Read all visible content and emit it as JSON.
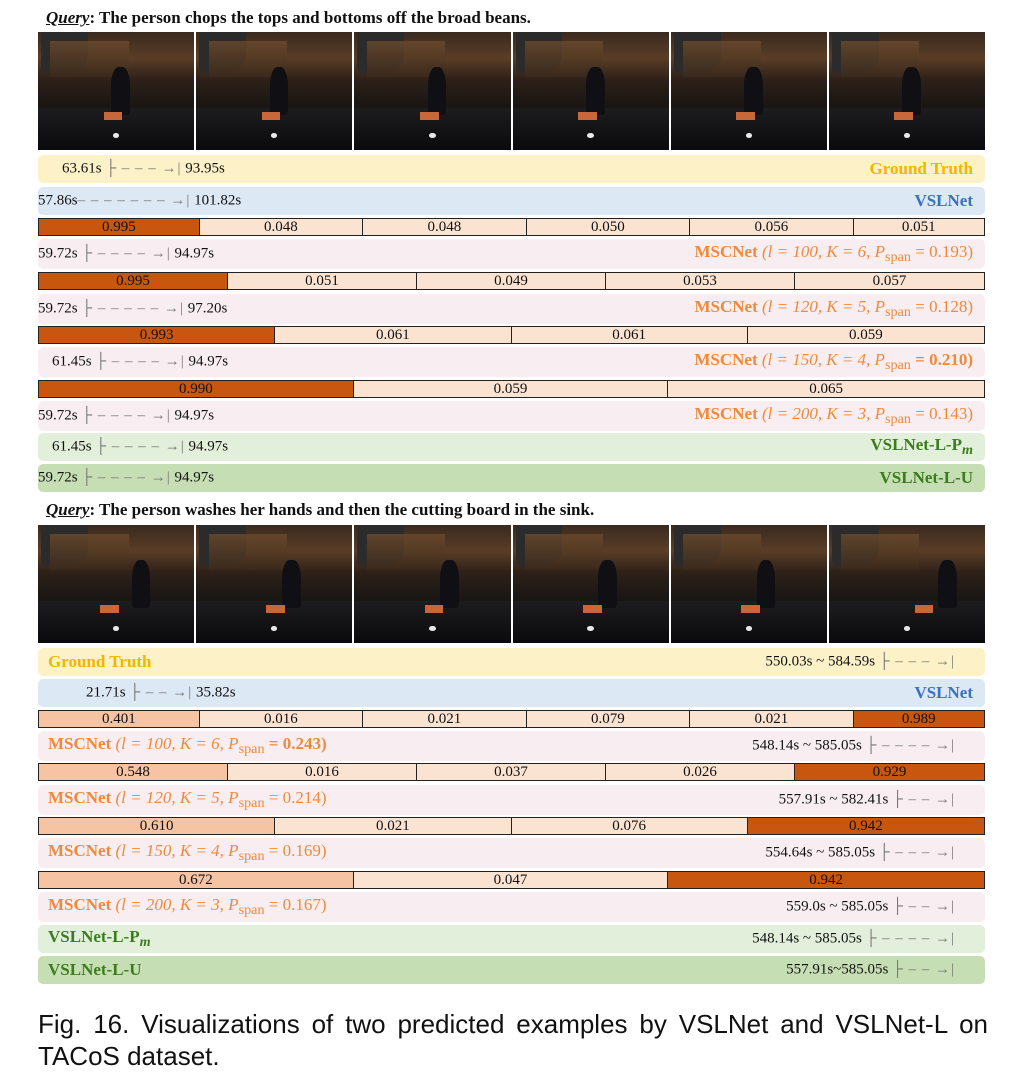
{
  "example1": {
    "query_label": "Query",
    "query_text": ": The person chops the tops and bottoms off the broad beans.",
    "gt": {
      "time": "63.61s",
      "end": "93.95s",
      "label": "Ground Truth"
    },
    "vslnet": {
      "time": "57.86s",
      "end": "101.82s",
      "label": "VSLNet"
    },
    "bar1": [
      "0.995",
      "0.048",
      "0.048",
      "0.050",
      "0.056",
      "0.051"
    ],
    "msc1": {
      "time": "59.72s",
      "end": "94.97s",
      "name": "MSCNet",
      "params": "(l = 100, K = 6, P",
      "sub": "span",
      "val": " = 0.193)"
    },
    "bar2": [
      "0.995",
      "0.051",
      "0.049",
      "0.053",
      "0.057"
    ],
    "msc2": {
      "time": "59.72s",
      "end": "97.20s",
      "name": "MSCNet",
      "params": "(l = 120, K = 5, P",
      "sub": "span",
      "val": " = 0.128)"
    },
    "bar3": [
      "0.993",
      "0.061",
      "0.061",
      "0.059"
    ],
    "msc3": {
      "time": "61.45s",
      "end": "94.97s",
      "name": "MSCNet",
      "params": "(l = 150, K = 4, P",
      "sub": "span",
      "val": " = 0.210)"
    },
    "bar4": [
      "0.990",
      "0.059",
      "0.065"
    ],
    "msc4": {
      "time": "59.72s",
      "end": "94.97s",
      "name": "MSCNet",
      "params": "(l = 200, K = 3, P",
      "sub": "span",
      "val": " = 0.143)"
    },
    "lpm": {
      "time": "61.45s",
      "end": "94.97s",
      "label": "VSLNet-L-P",
      "sub": "m"
    },
    "lu": {
      "time": "59.72s",
      "end": "94.97s",
      "label": "VSLNet-L-U"
    }
  },
  "example2": {
    "query_label": "Query",
    "query_text": ": The person washes her hands and then the cutting board in the sink.",
    "gt": {
      "time": "550.03s ~ 584.59s",
      "label": "Ground Truth"
    },
    "vslnet": {
      "time": "21.71s",
      "end": "35.82s",
      "label": "VSLNet"
    },
    "bar1": [
      "0.401",
      "0.016",
      "0.021",
      "0.079",
      "0.021",
      "0.989"
    ],
    "msc1": {
      "time": "548.14s ~ 585.05s",
      "name": "MSCNet",
      "params": "(l = 100, K = 6, P",
      "sub": "span",
      "val": " = 0.243)"
    },
    "bar2": [
      "0.548",
      "0.016",
      "0.037",
      "0.026",
      "0.929"
    ],
    "msc2": {
      "time": "557.91s ~ 582.41s",
      "name": "MSCNet",
      "params": "(l = 120, K = 5, P",
      "sub": "span",
      "val": " = 0.214)"
    },
    "bar3": [
      "0.610",
      "0.021",
      "0.076",
      "0.942"
    ],
    "msc3": {
      "time": "554.64s ~ 585.05s",
      "name": "MSCNet",
      "params": "(l = 150, K = 4, P",
      "sub": "span",
      "val": " = 0.169)"
    },
    "bar4": [
      "0.672",
      "0.047",
      "0.942"
    ],
    "msc4": {
      "time": "559.0s ~ 585.05s",
      "name": "MSCNet",
      "params": "(l = 200, K = 3, P",
      "sub": "span",
      "val": " = 0.167)"
    },
    "lpm": {
      "time": "548.14s ~ 585.05s",
      "label": "VSLNet-L-P",
      "sub": "m"
    },
    "lu": {
      "time": "557.91s~585.05s",
      "label": "VSLNet-L-U"
    }
  },
  "arrows": {
    "a1": "├ – – →|",
    "a2": "├ – – – →|",
    "a3": "├ – – – – →|",
    "a4": "├ – – – – – →|",
    "a5": "– – – – – – – →|"
  },
  "colors": {
    "high": "#c8560f",
    "mid": "#f6c4a3",
    "low": "#fbe3d2"
  },
  "caption": "Fig. 16. Visualizations of two predicted examples by VSLNet and VSLNet-L on TACoS dataset."
}
